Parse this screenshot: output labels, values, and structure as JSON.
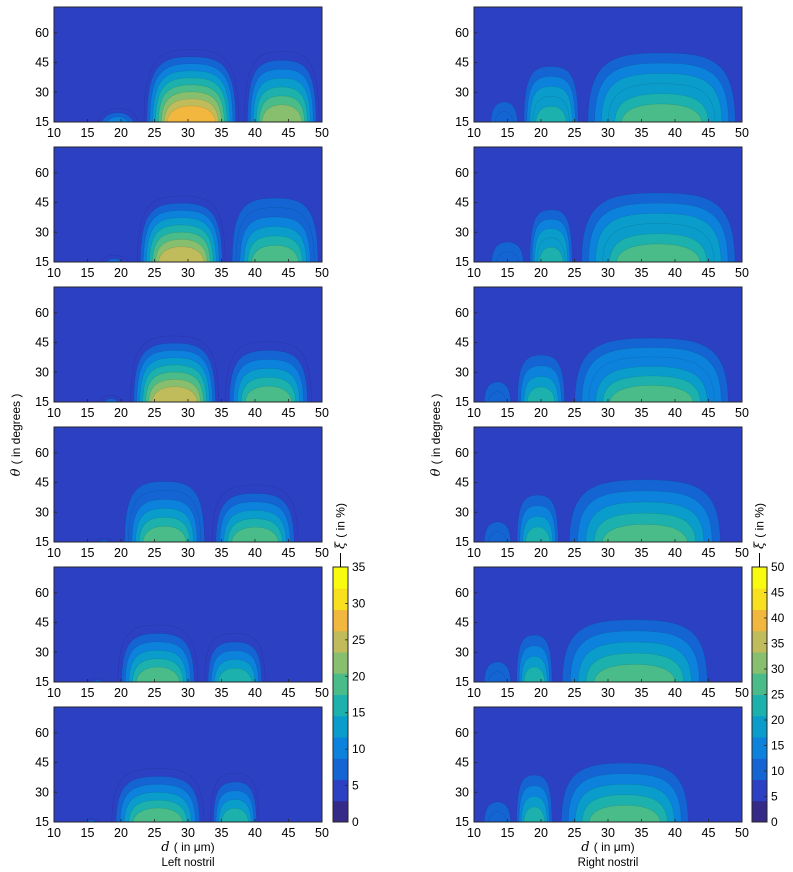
{
  "figure": {
    "colormap": [
      "#352a87",
      "#2c40c4",
      "#1465d3",
      "#0d82dc",
      "#0a9dcb",
      "#1cb1ad",
      "#4abc8a",
      "#87bf6e",
      "#c0bc5c",
      "#f2b73e",
      "#f9e01f",
      "#f9fb0e"
    ],
    "x_ticks": [
      "10",
      "15",
      "20",
      "25",
      "30",
      "35",
      "40",
      "45",
      "50"
    ],
    "y_ticks": [
      "15",
      "30",
      "45",
      "60"
    ],
    "x_label": {
      "symbol": "d",
      "text": "( in μm)"
    },
    "y_label": {
      "symbol": "θ",
      "text": "( in degrees )"
    }
  },
  "chart_data": [
    {
      "type": "heatmap",
      "name": "left-column",
      "subtitle": "Left nostril",
      "xlim": [
        10,
        50
      ],
      "ylim": [
        15,
        73
      ],
      "colorbar": {
        "label_symbol": "ξ",
        "label_text": "( in %)",
        "range": [
          0,
          35
        ],
        "ticks": [
          "0",
          "5",
          "10",
          "15",
          "20",
          "25",
          "30",
          "35"
        ]
      },
      "panels": [
        {
          "base": 3,
          "clusters": [
            {
              "x1": 16,
              "x2": 23,
              "peak": 9,
              "h": 24
            },
            {
              "x1": 23,
              "x2": 38,
              "peak": 28,
              "h": 55
            },
            {
              "x1": 38,
              "x2": 50,
              "peak": 22,
              "h": 55
            }
          ]
        },
        {
          "base": 3,
          "clusters": [
            {
              "x1": 16,
              "x2": 22,
              "peak": 8,
              "h": 20
            },
            {
              "x1": 22,
              "x2": 36,
              "peak": 24,
              "h": 52
            },
            {
              "x1": 36,
              "x2": 50,
              "peak": 20,
              "h": 52
            }
          ]
        },
        {
          "base": 3,
          "clusters": [
            {
              "x1": 16,
              "x2": 21,
              "peak": 8,
              "h": 20
            },
            {
              "x1": 21,
              "x2": 35,
              "peak": 24,
              "h": 52
            },
            {
              "x1": 35,
              "x2": 49,
              "peak": 18,
              "h": 50
            }
          ]
        },
        {
          "base": 3,
          "clusters": [
            {
              "x1": 15,
              "x2": 20,
              "peak": 7,
              "h": 18
            },
            {
              "x1": 20,
              "x2": 33,
              "peak": 20,
              "h": 50
            },
            {
              "x1": 33,
              "x2": 47,
              "peak": 18,
              "h": 48
            }
          ]
        },
        {
          "base": 3,
          "clusters": [
            {
              "x1": 14,
              "x2": 19,
              "peak": 7,
              "h": 18
            },
            {
              "x1": 19,
              "x2": 32,
              "peak": 18,
              "h": 48
            },
            {
              "x1": 32,
              "x2": 42,
              "peak": 17,
              "h": 44
            }
          ]
        },
        {
          "base": 3,
          "clusters": [
            {
              "x1": 13,
              "x2": 18,
              "peak": 7,
              "h": 18
            },
            {
              "x1": 18,
              "x2": 33,
              "peak": 18,
              "h": 46
            },
            {
              "x1": 33,
              "x2": 41,
              "peak": 17,
              "h": 44
            }
          ]
        }
      ]
    },
    {
      "type": "heatmap",
      "name": "right-column",
      "subtitle": "Right nostril",
      "xlim": [
        10,
        50
      ],
      "ylim": [
        15,
        73
      ],
      "colorbar": {
        "label_symbol": "ξ",
        "label_text": "( in %)",
        "range": [
          0,
          50
        ],
        "ticks": [
          "0",
          "5",
          "10",
          "15",
          "20",
          "25",
          "30",
          "35",
          "40",
          "45",
          "50"
        ]
      },
      "panels": [
        {
          "base": 6,
          "clusters": [
            {
              "x1": 12,
              "x2": 17,
              "peak": 12,
              "h": 30
            },
            {
              "x1": 17,
              "x2": 26,
              "peak": 24,
              "h": 48
            },
            {
              "x1": 26,
              "x2": 50,
              "peak": 28,
              "h": 55
            }
          ]
        },
        {
          "base": 6,
          "clusters": [
            {
              "x1": 12,
              "x2": 18,
              "peak": 12,
              "h": 30
            },
            {
              "x1": 18,
              "x2": 25,
              "peak": 24,
              "h": 46
            },
            {
              "x1": 25,
              "x2": 50,
              "peak": 28,
              "h": 55
            }
          ]
        },
        {
          "base": 6,
          "clusters": [
            {
              "x1": 11,
              "x2": 16,
              "peak": 12,
              "h": 30
            },
            {
              "x1": 16,
              "x2": 24,
              "peak": 22,
              "h": 44
            },
            {
              "x1": 24,
              "x2": 49,
              "peak": 27,
              "h": 52
            }
          ]
        },
        {
          "base": 6,
          "clusters": [
            {
              "x1": 11,
              "x2": 16,
              "peak": 12,
              "h": 30
            },
            {
              "x1": 16,
              "x2": 23,
              "peak": 22,
              "h": 44
            },
            {
              "x1": 23,
              "x2": 48,
              "peak": 26,
              "h": 52
            }
          ]
        },
        {
          "base": 6,
          "clusters": [
            {
              "x1": 11,
              "x2": 16,
              "peak": 12,
              "h": 30
            },
            {
              "x1": 16,
              "x2": 22,
              "peak": 22,
              "h": 44
            },
            {
              "x1": 22,
              "x2": 46,
              "peak": 26,
              "h": 52
            }
          ]
        },
        {
          "base": 6,
          "clusters": [
            {
              "x1": 11,
              "x2": 16,
              "peak": 12,
              "h": 30
            },
            {
              "x1": 16,
              "x2": 22,
              "peak": 22,
              "h": 44
            },
            {
              "x1": 22,
              "x2": 43,
              "peak": 26,
              "h": 50
            }
          ]
        }
      ]
    }
  ]
}
